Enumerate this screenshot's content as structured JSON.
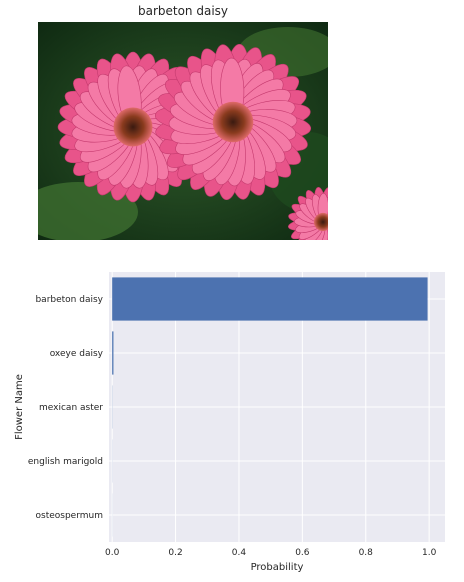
{
  "image_panel": {
    "title": "barbeton daisy"
  },
  "colors": {
    "bar": "#4c72b0",
    "plot_bg": "#eaeaf2",
    "grid": "#ffffff"
  },
  "chart_data": {
    "type": "bar",
    "orientation": "horizontal",
    "categories": [
      "barbeton daisy",
      "oxeye daisy",
      "mexican aster",
      "english marigold",
      "osteospermum"
    ],
    "values": [
      0.995,
      0.004,
      0.0005,
      0.0003,
      0.0002
    ],
    "xlabel": "Probability",
    "ylabel": "Flower Name",
    "xlim": [
      -0.01,
      1.05
    ],
    "xticks": [
      "0.0",
      "0.2",
      "0.4",
      "0.6",
      "0.8",
      "1.0"
    ],
    "grid": true
  }
}
